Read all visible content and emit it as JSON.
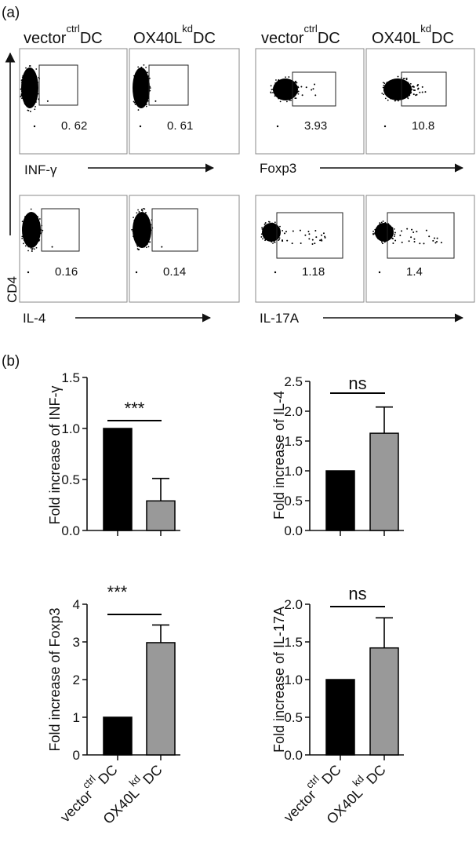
{
  "panel_a_label": "(a)",
  "panel_b_label": "(b)",
  "flow": {
    "col_headers": [
      {
        "main": "vector",
        "sup": "ctrl",
        "suffix": "DC"
      },
      {
        "main": "OX40L",
        "sup": "kd",
        "suffix": "DC"
      },
      {
        "main": "vector",
        "sup": "ctrl",
        "suffix": "DC"
      },
      {
        "main": "OX40L",
        "sup": "kd",
        "suffix": "DC"
      }
    ],
    "y_axis_label": "CD4",
    "x_axis_labels": [
      "INF-γ",
      "Foxp3",
      "IL-4",
      "IL-17A"
    ],
    "percentages": {
      "INF-γ": [
        "0. 62",
        "0. 61"
      ],
      "Foxp3": [
        "3.93",
        "10.8"
      ],
      "IL-4": [
        "0.16",
        "0.14"
      ],
      "IL-17A": [
        "1.18",
        "1.4"
      ]
    }
  },
  "chart_data": [
    {
      "type": "bar",
      "categories": [
        "vector ctrl DC",
        "OX40L kd DC"
      ],
      "values": [
        1.0,
        0.29
      ],
      "errors": [
        0,
        0.22
      ],
      "ylabel": "Fold increase of INF-γ",
      "ylim": [
        0,
        1.5
      ],
      "yticks": [
        "0.0",
        "0.5",
        "1.0",
        "1.5"
      ],
      "significance": "***",
      "colors": [
        "#000000",
        "#999999"
      ]
    },
    {
      "type": "bar",
      "categories": [
        "vector ctrl DC",
        "OX40L kd DC"
      ],
      "values": [
        1.0,
        1.63
      ],
      "errors": [
        0,
        0.44
      ],
      "ylabel": "Fold increase of IL-4",
      "ylim": [
        0,
        2.5
      ],
      "yticks": [
        "0.0",
        "0.5",
        "1.0",
        "1.5",
        "2.0",
        "2.5"
      ],
      "significance": "ns",
      "colors": [
        "#000000",
        "#999999"
      ]
    },
    {
      "type": "bar",
      "categories": [
        "vector ctrl DC",
        "OX40L kd DC"
      ],
      "values": [
        1.0,
        2.98
      ],
      "errors": [
        0,
        0.47
      ],
      "ylabel": "Fold increase of Foxp3",
      "ylim": [
        0,
        4
      ],
      "yticks": [
        "0",
        "1",
        "2",
        "3",
        "4"
      ],
      "significance": "***",
      "colors": [
        "#000000",
        "#999999"
      ]
    },
    {
      "type": "bar",
      "categories": [
        "vector ctrl DC",
        "OX40L kd DC"
      ],
      "values": [
        1.0,
        1.42
      ],
      "errors": [
        0,
        0.4
      ],
      "ylabel": "Fold increase of IL-17A",
      "ylim": [
        0,
        2.0
      ],
      "yticks": [
        "0.0",
        "0.5",
        "1.0",
        "1.5",
        "2.0"
      ],
      "significance": "ns",
      "colors": [
        "#000000",
        "#999999"
      ]
    }
  ],
  "x_tick_labels": [
    {
      "main": "vector",
      "sup": "ctrl",
      "suffix": "DC"
    },
    {
      "main": "OX40L",
      "sup": "kd",
      "suffix": "DC"
    }
  ]
}
